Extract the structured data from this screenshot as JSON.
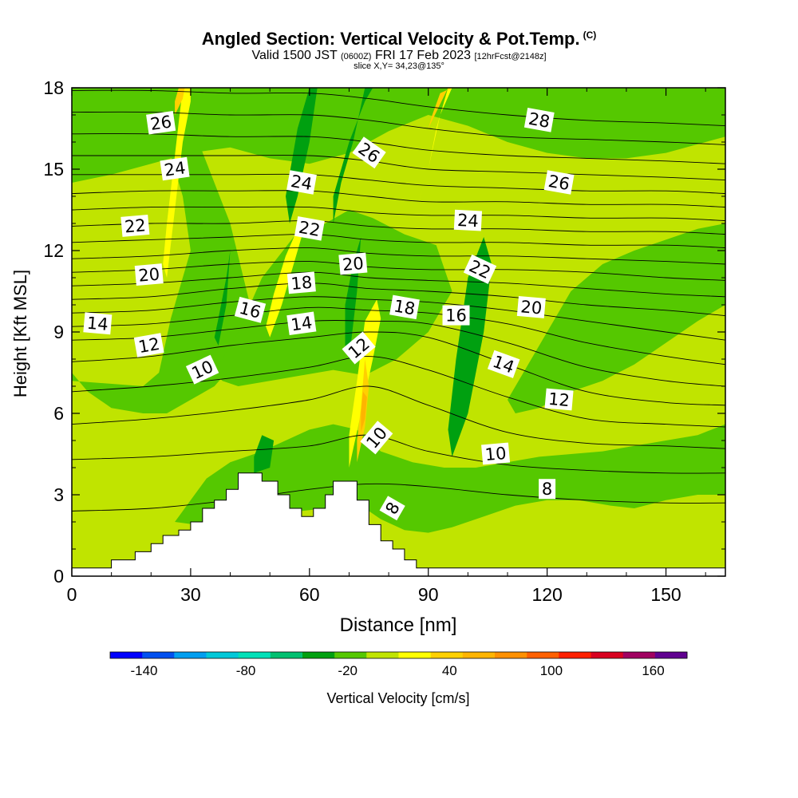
{
  "titles": {
    "main": "Angled Section: Vertical Velocity & Pot.Temp.",
    "copyright": "(C)",
    "valid_prefix": "Valid 1500 JST",
    "valid_utc": "(0600Z)",
    "valid_date": "FRI 17 Feb 2023",
    "forecast": "[12hrFcst@2148z]",
    "slice": "slice X,Y= 34,23@135°"
  },
  "chart_data": {
    "type": "heatmap",
    "xlabel": "Distance [nm]",
    "ylabel": "Height [Kft MSL]",
    "xlim": [
      0,
      165
    ],
    "ylim": [
      0,
      18
    ],
    "xticks": [
      0,
      30,
      60,
      90,
      120,
      150
    ],
    "yticks": [
      0,
      3,
      6,
      9,
      12,
      15,
      18
    ],
    "colorbar": {
      "label": "Vertical Velocity [cm/s]",
      "tick_labels": [
        "-140",
        "-80",
        "-20",
        "40",
        "100",
        "160"
      ],
      "tick_values": [
        -140,
        -80,
        -20,
        40,
        100,
        160
      ],
      "range": [
        -160,
        180
      ],
      "bin_width": 20,
      "colors": [
        "#0000ff",
        "#0050f0",
        "#009ef0",
        "#00c8d8",
        "#00e0b8",
        "#00c070",
        "#00a010",
        "#55c800",
        "#c0e400",
        "#ffff00",
        "#ffd000",
        "#ffb400",
        "#ff9000",
        "#ff6000",
        "#ff2000",
        "#d80020",
        "#a00060",
        "#600090"
      ]
    },
    "terrain": {
      "x": [
        0,
        10,
        10,
        16,
        16,
        20,
        20,
        23,
        23,
        27,
        27,
        30,
        30,
        33,
        33,
        36,
        36,
        39,
        39,
        42,
        42,
        48,
        48,
        52,
        52,
        55,
        55,
        58,
        58,
        61,
        61,
        64,
        64,
        66,
        66,
        72,
        72,
        75,
        75,
        78,
        78,
        81,
        81,
        84,
        84,
        87,
        87,
        90,
        90,
        165
      ],
      "height": [
        0.3,
        0.3,
        0.6,
        0.6,
        0.9,
        0.9,
        1.2,
        1.2,
        1.5,
        1.5,
        1.7,
        1.7,
        2.0,
        2.0,
        2.5,
        2.5,
        2.8,
        2.8,
        3.2,
        3.2,
        3.8,
        3.8,
        3.5,
        3.5,
        3.0,
        3.0,
        2.5,
        2.5,
        2.2,
        2.2,
        2.5,
        2.5,
        3.0,
        3.0,
        3.5,
        3.5,
        2.8,
        2.8,
        1.9,
        1.9,
        1.3,
        1.3,
        1.0,
        1.0,
        0.6,
        0.6,
        0.3,
        0.3,
        0.3,
        0.3
      ]
    },
    "regions": [
      {
        "value": 10,
        "x": [
          0,
          165,
          165,
          0
        ],
        "y": [
          0,
          0,
          18,
          18
        ]
      },
      {
        "value": -10,
        "x": [
          0,
          18,
          22,
          25,
          30,
          28,
          24,
          22,
          26,
          32,
          40,
          45,
          42,
          36,
          30,
          24,
          18,
          10,
          4,
          0
        ],
        "y": [
          7.2,
          7.0,
          7.5,
          9.5,
          12,
          14,
          16,
          18,
          18,
          16,
          13,
          10,
          8,
          7,
          6.5,
          6,
          6,
          6.2,
          6.8,
          7.5
        ]
      },
      {
        "value": -10,
        "x": [
          26,
          36,
          44,
          52,
          58,
          64,
          70,
          74,
          78,
          84,
          90,
          96,
          104,
          112,
          120,
          128,
          136,
          142,
          150,
          158,
          165,
          165,
          158,
          150,
          142,
          134,
          126,
          118,
          110,
          102,
          94,
          86,
          78,
          72,
          66,
          60,
          54,
          48,
          40,
          34,
          30
        ],
        "y": [
          2.0,
          1.8,
          2.2,
          2.4,
          2.4,
          2.5,
          2.6,
          2.5,
          2.1,
          1.7,
          1.6,
          1.8,
          2.2,
          2.6,
          2.8,
          2.8,
          2.6,
          2.5,
          2.8,
          3.0,
          3.0,
          5.6,
          5.2,
          5.0,
          4.8,
          4.6,
          4.5,
          4.4,
          4.2,
          4.0,
          4.0,
          4.2,
          4.6,
          5.4,
          5.6,
          5.4,
          5.0,
          4.6,
          4.2,
          3.6,
          2.8
        ]
      },
      {
        "value": -10,
        "x": [
          0,
          10,
          20,
          30,
          40,
          50,
          60,
          70,
          80,
          90,
          100,
          110,
          120,
          130,
          140,
          150,
          160,
          165,
          165,
          0
        ],
        "y": [
          14.5,
          14.8,
          15.2,
          15.6,
          15.8,
          15.4,
          15.2,
          15.6,
          16.4,
          17,
          16.6,
          16,
          15.6,
          15.4,
          15.4,
          15.6,
          16,
          16.2,
          18,
          18
        ]
      },
      {
        "value": -10,
        "x": [
          36,
          42,
          48,
          56,
          64,
          70,
          76,
          84,
          92,
          96,
          90,
          82,
          74,
          66,
          58,
          50,
          42,
          38
        ],
        "y": [
          7.5,
          9,
          11,
          12.5,
          13,
          13.5,
          13.2,
          12.6,
          12.2,
          10.5,
          9,
          8,
          7.4,
          7.6,
          7.4,
          7.2,
          7,
          7.2
        ]
      },
      {
        "value": -10,
        "x": [
          110,
          118,
          126,
          134,
          142,
          150,
          158,
          165,
          165,
          158,
          150,
          142,
          134,
          126,
          118,
          112
        ],
        "y": [
          6.5,
          8.5,
          10.5,
          11.5,
          12,
          12.4,
          12.8,
          13,
          10,
          9.4,
          8.6,
          7.8,
          7.2,
          6.8,
          6.2,
          6
        ]
      },
      {
        "value": -30,
        "x": [
          54,
          57,
          60,
          62,
          60,
          57,
          55
        ],
        "y": [
          14,
          16.5,
          18,
          18,
          16,
          14,
          13
        ]
      },
      {
        "value": -30,
        "x": [
          66,
          70,
          74,
          76,
          74,
          71,
          68,
          66
        ],
        "y": [
          14,
          16,
          17.5,
          18,
          18,
          16,
          14.5,
          13
        ]
      },
      {
        "value": -30,
        "x": [
          69,
          71,
          73,
          72,
          70,
          69
        ],
        "y": [
          10,
          11.5,
          12.5,
          10.5,
          8,
          8.5
        ]
      },
      {
        "value": -30,
        "x": [
          96,
          100,
          104,
          106,
          104,
          100,
          97,
          95
        ],
        "y": [
          4.4,
          6,
          9,
          11.5,
          12.5,
          11,
          8,
          5.4
        ]
      },
      {
        "value": -30,
        "x": [
          37,
          39,
          40,
          39,
          37,
          36
        ],
        "y": [
          8.5,
          10,
          12,
          11,
          9.5,
          8.8
        ]
      },
      {
        "value": -30,
        "x": [
          46,
          50,
          51,
          48,
          46
        ],
        "y": [
          3.8,
          4,
          5,
          5.2,
          4.4
        ]
      },
      {
        "value": 30,
        "x": [
          24,
          26,
          28,
          30,
          30,
          28,
          26,
          24,
          23
        ],
        "y": [
          11,
          13.5,
          16,
          17.5,
          18,
          18,
          15.5,
          13,
          11.5
        ]
      },
      {
        "value": 30,
        "x": [
          50,
          53,
          56,
          58,
          57,
          54,
          51,
          49
        ],
        "y": [
          8.8,
          10,
          11.5,
          12.5,
          12.8,
          11.8,
          10.4,
          9.2
        ]
      },
      {
        "value": 30,
        "x": [
          70,
          73,
          76,
          78,
          77,
          74,
          72,
          70
        ],
        "y": [
          4,
          6,
          8,
          9.5,
          10.2,
          9.4,
          7.2,
          5.2
        ]
      },
      {
        "value": 30,
        "x": [
          87,
          90,
          93,
          96,
          95,
          92,
          90,
          88
        ],
        "y": [
          13.5,
          15,
          17,
          18,
          18,
          16.5,
          15,
          14
        ]
      },
      {
        "value": 50,
        "x": [
          72,
          74,
          75,
          74,
          73,
          72
        ],
        "y": [
          4.2,
          5.5,
          7,
          8,
          6.2,
          5
        ]
      },
      {
        "value": 50,
        "x": [
          90,
          93,
          95,
          96,
          93,
          91
        ],
        "y": [
          16.5,
          17.4,
          18,
          18,
          17.8,
          17
        ]
      },
      {
        "value": 50,
        "x": [
          26,
          28,
          28.5,
          27,
          26
        ],
        "y": [
          17,
          17.6,
          18,
          18,
          17.5
        ]
      },
      {
        "value": 70,
        "x": [
          73,
          74,
          74.5,
          73.5,
          73
        ],
        "y": [
          5.3,
          5.8,
          6.6,
          6.8,
          6
        ]
      }
    ],
    "isentropes": {
      "levels": [
        8,
        9,
        10,
        11,
        12,
        13,
        14,
        15,
        16,
        17,
        18,
        19,
        20,
        21,
        22,
        23,
        24,
        25,
        26,
        27,
        28
      ],
      "x": [
        0,
        20,
        40,
        60,
        75,
        90,
        110,
        130,
        150,
        165
      ],
      "heights": [
        [
          2.4,
          2.5,
          2.8,
          3.2,
          3.4,
          3.3,
          3.0,
          2.8,
          2.7,
          2.7
        ],
        [
          4.3,
          4.4,
          4.6,
          4.8,
          5.2,
          4.6,
          4.1,
          3.9,
          3.8,
          3.8
        ],
        [
          5.6,
          5.8,
          6.1,
          6.5,
          7.0,
          6.3,
          5.3,
          4.9,
          4.8,
          4.7
        ],
        [
          6.8,
          7.0,
          7.3,
          7.7,
          8.1,
          7.6,
          6.6,
          5.8,
          5.6,
          5.5
        ],
        [
          7.9,
          8.1,
          8.5,
          8.8,
          9.0,
          8.8,
          7.8,
          6.8,
          6.4,
          6.3
        ],
        [
          8.7,
          8.8,
          9.1,
          9.4,
          9.4,
          9.3,
          8.6,
          7.7,
          7.2,
          7.0
        ],
        [
          9.2,
          9.3,
          9.6,
          9.9,
          9.8,
          9.7,
          9.3,
          8.6,
          8.1,
          7.8
        ],
        [
          9.7,
          9.8,
          10.1,
          10.3,
          10.2,
          10.1,
          9.8,
          9.4,
          9.0,
          8.7
        ],
        [
          10.2,
          10.3,
          10.6,
          10.8,
          10.6,
          10.5,
          10.3,
          10.0,
          9.8,
          9.6
        ],
        [
          10.7,
          10.8,
          11.0,
          11.2,
          11.0,
          10.9,
          10.8,
          10.6,
          10.4,
          10.3
        ],
        [
          11.2,
          11.3,
          11.5,
          11.6,
          11.4,
          11.3,
          11.3,
          11.2,
          11.0,
          10.9
        ],
        [
          11.7,
          11.8,
          12.0,
          12.1,
          11.9,
          11.8,
          11.8,
          11.7,
          11.6,
          11.5
        ],
        [
          12.3,
          12.4,
          12.5,
          12.6,
          12.4,
          12.3,
          12.3,
          12.2,
          12.2,
          12.1
        ],
        [
          12.9,
          13.0,
          13.0,
          13.1,
          12.9,
          12.8,
          12.8,
          12.7,
          12.7,
          12.6
        ],
        [
          13.5,
          13.6,
          13.6,
          13.6,
          13.4,
          13.3,
          13.3,
          13.2,
          13.2,
          13.1
        ],
        [
          14.1,
          14.2,
          14.2,
          14.2,
          14.0,
          13.8,
          13.8,
          13.7,
          13.7,
          13.6
        ],
        [
          14.8,
          14.8,
          14.8,
          14.8,
          14.6,
          14.4,
          14.3,
          14.2,
          14.2,
          14.1
        ],
        [
          15.5,
          15.5,
          15.5,
          15.5,
          15.3,
          15.0,
          14.9,
          14.8,
          14.7,
          14.6
        ],
        [
          16.3,
          16.3,
          16.2,
          16.2,
          16.0,
          15.7,
          15.5,
          15.4,
          15.3,
          15.2
        ],
        [
          17.1,
          17.1,
          17.0,
          17.0,
          16.8,
          16.5,
          16.2,
          16.1,
          16.0,
          15.9
        ],
        [
          17.9,
          17.9,
          17.8,
          17.8,
          17.6,
          17.3,
          17.0,
          16.8,
          16.7,
          16.6
        ]
      ]
    },
    "contour_labels": [
      {
        "text": "26",
        "x": 22.5,
        "y": 16.7,
        "angle": -8
      },
      {
        "text": "24",
        "x": 26,
        "y": 15.0,
        "angle": -8
      },
      {
        "text": "22",
        "x": 16,
        "y": 12.9,
        "angle": -5
      },
      {
        "text": "20",
        "x": 19.5,
        "y": 11.1,
        "angle": -5
      },
      {
        "text": "14",
        "x": 6.5,
        "y": 9.3,
        "angle": 5
      },
      {
        "text": "12",
        "x": 19.5,
        "y": 8.5,
        "angle": -10
      },
      {
        "text": "10",
        "x": 33,
        "y": 7.6,
        "angle": -25
      },
      {
        "text": "16",
        "x": 45,
        "y": 9.8,
        "angle": 15
      },
      {
        "text": "24",
        "x": 58,
        "y": 14.5,
        "angle": 10
      },
      {
        "text": "22",
        "x": 60,
        "y": 12.8,
        "angle": 10
      },
      {
        "text": "18",
        "x": 58,
        "y": 10.8,
        "angle": -5
      },
      {
        "text": "14",
        "x": 58,
        "y": 9.3,
        "angle": -8
      },
      {
        "text": "26",
        "x": 75,
        "y": 15.6,
        "angle": 35
      },
      {
        "text": "20",
        "x": 71,
        "y": 11.5,
        "angle": -5
      },
      {
        "text": "12",
        "x": 72.5,
        "y": 8.4,
        "angle": -40
      },
      {
        "text": "10",
        "x": 77,
        "y": 5.1,
        "angle": -50
      },
      {
        "text": "8",
        "x": 81,
        "y": 2.5,
        "angle": -60
      },
      {
        "text": "18",
        "x": 84,
        "y": 9.9,
        "angle": 10
      },
      {
        "text": "24",
        "x": 100,
        "y": 13.1,
        "angle": 3
      },
      {
        "text": "22",
        "x": 103,
        "y": 11.3,
        "angle": 25
      },
      {
        "text": "16",
        "x": 97,
        "y": 9.6,
        "angle": 0
      },
      {
        "text": "28",
        "x": 118,
        "y": 16.8,
        "angle": 10
      },
      {
        "text": "26",
        "x": 123,
        "y": 14.5,
        "angle": 10
      },
      {
        "text": "20",
        "x": 116,
        "y": 9.9,
        "angle": 5
      },
      {
        "text": "14",
        "x": 109,
        "y": 7.8,
        "angle": 20
      },
      {
        "text": "12",
        "x": 123,
        "y": 6.5,
        "angle": 5
      },
      {
        "text": "10",
        "x": 107,
        "y": 4.5,
        "angle": -5
      },
      {
        "text": "8",
        "x": 120,
        "y": 3.2,
        "angle": 0
      }
    ]
  }
}
